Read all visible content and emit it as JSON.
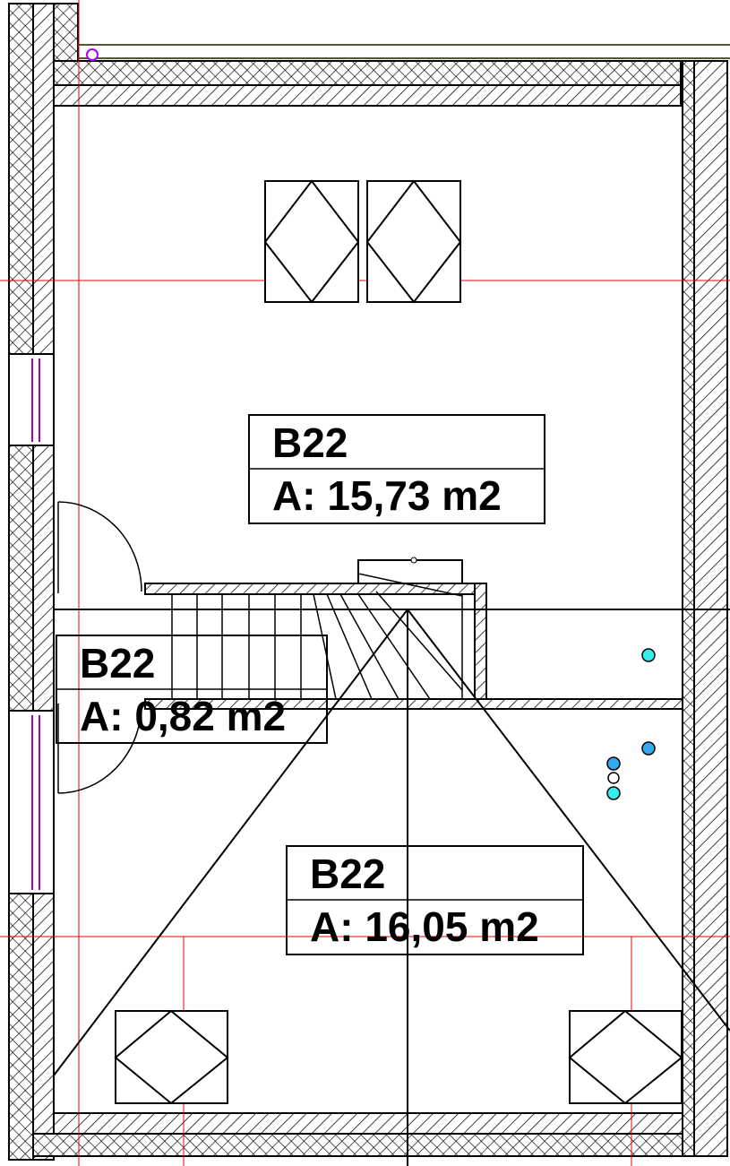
{
  "rooms": [
    {
      "name": "B22",
      "area": "A: 15,73 m2"
    },
    {
      "name": "B22",
      "area": "A: 0,82 m2"
    },
    {
      "name": "B22",
      "area": "A: 16,05 m2"
    }
  ]
}
